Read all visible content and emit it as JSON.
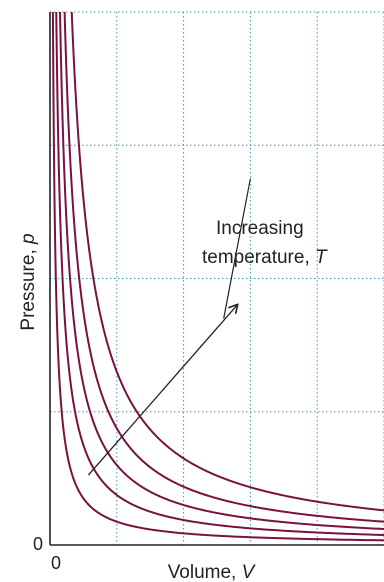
{
  "chart_data": {
    "type": "line",
    "title": "",
    "xlabel": "Volume, ",
    "xlabel_var": "V",
    "ylabel": "Pressure, ",
    "ylabel_var": "p",
    "x_tick_labels": [
      "0"
    ],
    "y_tick_labels": [
      "0"
    ],
    "xlim": [
      0,
      10
    ],
    "ylim": [
      0,
      8
    ],
    "grid": true,
    "grid_style": "dotted",
    "colors": {
      "curve": "#7a1240",
      "grid": "#3f9aaa",
      "axis": "#222222",
      "text": "#222222"
    },
    "series": [
      {
        "k": 0.7
      },
      {
        "k": 1.5
      },
      {
        "k": 2.4
      },
      {
        "k": 3.5
      },
      {
        "k": 5.2
      }
    ],
    "annotation": {
      "line1": "Increasing",
      "line2": "temperature, ",
      "line2_var": "T",
      "arrow_from": [
        1.15,
        1.05
      ],
      "arrow_to": [
        5.6,
        3.6
      ],
      "leader_from": [
        6.0,
        5.5
      ],
      "leader_to": [
        5.2,
        3.4
      ]
    }
  }
}
